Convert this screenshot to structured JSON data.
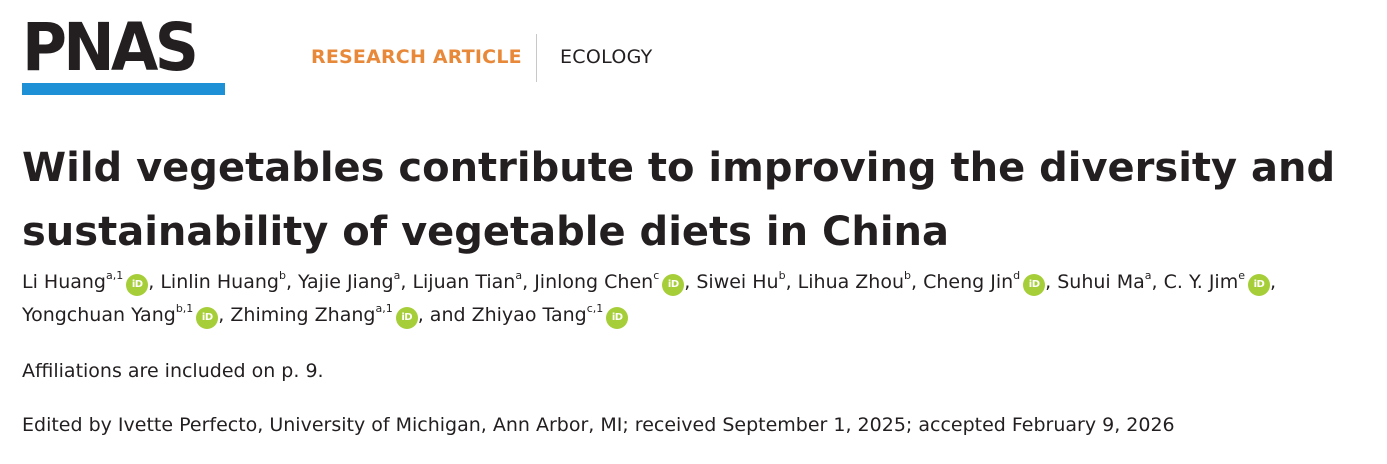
{
  "header": {
    "logo_text": "PNAS",
    "article_type": "RESEARCH ARTICLE",
    "section": "ECOLOGY"
  },
  "title": "Wild vegetables contribute to improving the diversity and sustainability of vegetable diets in China",
  "authors": [
    {
      "name": "Li Huang",
      "sup": "a,1",
      "orcid": true,
      "sep": ", "
    },
    {
      "name": "Linlin Huang",
      "sup": "b",
      "orcid": false,
      "sep": ", "
    },
    {
      "name": "Yajie Jiang",
      "sup": "a",
      "orcid": false,
      "sep": ", "
    },
    {
      "name": "Lijuan Tian",
      "sup": "a",
      "orcid": false,
      "sep": ", "
    },
    {
      "name": "Jinlong Chen",
      "sup": "c",
      "orcid": true,
      "sep": ", "
    },
    {
      "name": "Siwei Hu",
      "sup": "b",
      "orcid": false,
      "sep": ", "
    },
    {
      "name": "Lihua Zhou",
      "sup": "b",
      "orcid": false,
      "sep": ", "
    },
    {
      "name": "Cheng Jin",
      "sup": "d",
      "orcid": true,
      "sep": ", "
    },
    {
      "name": "Suhui Ma",
      "sup": "a",
      "orcid": false,
      "sep": ", "
    },
    {
      "name": "C. Y. Jim",
      "sup": "e",
      "orcid": true,
      "sep": ", "
    },
    {
      "name": "Yongchuan Yang",
      "sup": "b,1",
      "orcid": true,
      "sep": ", "
    },
    {
      "name": "Zhiming Zhang",
      "sup": "a,1",
      "orcid": true,
      "sep": ", and "
    },
    {
      "name": "Zhiyao Tang",
      "sup": "c,1",
      "orcid": true,
      "sep": ""
    }
  ],
  "orcid_icon_text": "iD",
  "affiliations_note": "Affiliations are included on p. 9.",
  "edited_by": "Edited by Ivette Perfecto, University of Michigan, Ann Arbor, MI; received September 1, 2025; accepted February 9, 2026",
  "colors": {
    "logo_bar": "#1e90d6",
    "article_type": "#e8893a",
    "orcid": "#a6ce39",
    "text": "#231f20"
  },
  "icons": [
    "orcid-icon"
  ]
}
